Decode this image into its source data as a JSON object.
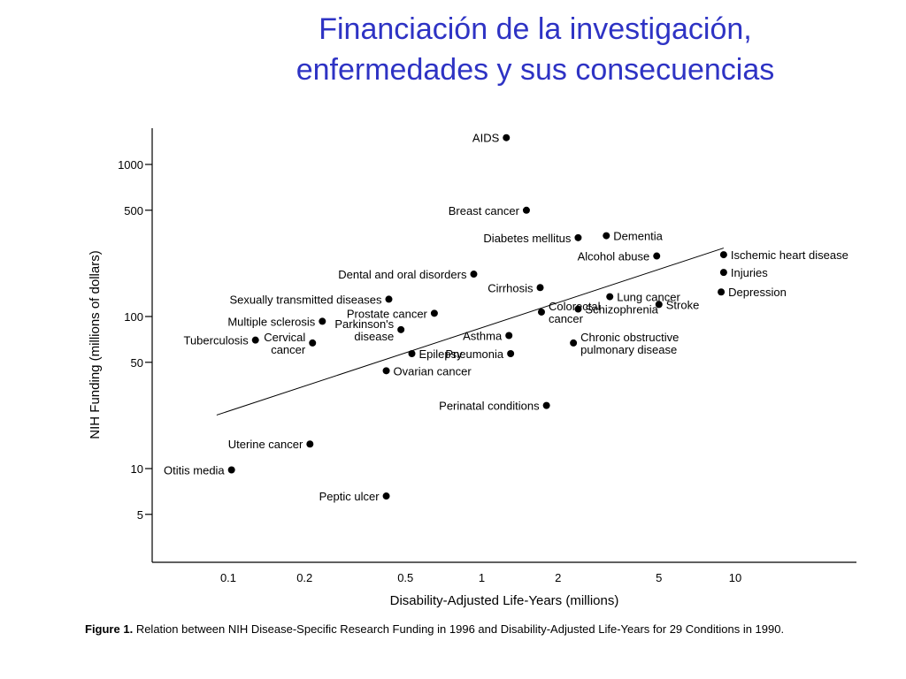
{
  "slide": {
    "title_line1": "Financiación de la investigación,",
    "title_line2": "enfermedades y sus consecuencias"
  },
  "figure": {
    "caption_label": "Figure 1.",
    "caption_text": "Relation between NIH Disease-Specific Research Funding in 1996 and Disability-Adjusted Life-Years for 29 Conditions in 1990."
  },
  "chart_data": {
    "type": "scatter",
    "xlabel": "Disability-Adjusted Life-Years (millions)",
    "ylabel": "NIH Funding (millions of dollars)",
    "x_scale": "log",
    "y_scale": "log",
    "xlim": [
      0.06,
      20
    ],
    "ylim": [
      3,
      1800
    ],
    "x_ticks": [
      {
        "value": 0.1,
        "label": "0.1"
      },
      {
        "value": 0.2,
        "label": "0.2"
      },
      {
        "value": 0.5,
        "label": "0.5"
      },
      {
        "value": 1,
        "label": "1"
      },
      {
        "value": 2,
        "label": "2"
      },
      {
        "value": 5,
        "label": "5"
      },
      {
        "value": 10,
        "label": "10"
      }
    ],
    "y_ticks": [
      {
        "value": 5,
        "label": "5"
      },
      {
        "value": 10,
        "label": "10"
      },
      {
        "value": 50,
        "label": "50"
      },
      {
        "value": 100,
        "label": "100"
      },
      {
        "value": 500,
        "label": "500"
      },
      {
        "value": 1000,
        "label": "1000"
      }
    ],
    "grid": false,
    "trend_line": [
      {
        "x": 0.09,
        "y": 22.5
      },
      {
        "x": 9.0,
        "y": 282
      }
    ],
    "points": [
      {
        "lines": [
          "AIDS"
        ],
        "x": 1.25,
        "y": 1500,
        "anchor": "end"
      },
      {
        "lines": [
          "Breast cancer"
        ],
        "x": 1.5,
        "y": 500,
        "anchor": "end"
      },
      {
        "lines": [
          "Diabetes mellitus"
        ],
        "x": 2.4,
        "y": 330,
        "anchor": "end"
      },
      {
        "lines": [
          "Dementia"
        ],
        "x": 3.1,
        "y": 340,
        "anchor": "start"
      },
      {
        "lines": [
          "Alcohol abuse"
        ],
        "x": 4.9,
        "y": 250,
        "anchor": "end"
      },
      {
        "lines": [
          "Ischemic heart disease"
        ],
        "x": 9.0,
        "y": 255,
        "anchor": "start"
      },
      {
        "lines": [
          "Injuries"
        ],
        "x": 9.0,
        "y": 195,
        "anchor": "start"
      },
      {
        "lines": [
          "Dental and oral disorders"
        ],
        "x": 0.93,
        "y": 190,
        "anchor": "end"
      },
      {
        "lines": [
          "Cirrhosis"
        ],
        "x": 1.7,
        "y": 155,
        "anchor": "end"
      },
      {
        "lines": [
          "Lung cancer"
        ],
        "x": 3.2,
        "y": 135,
        "anchor": "start"
      },
      {
        "lines": [
          "Depression"
        ],
        "x": 8.8,
        "y": 145,
        "anchor": "start"
      },
      {
        "lines": [
          "Sexually transmitted diseases"
        ],
        "x": 0.43,
        "y": 130,
        "anchor": "end"
      },
      {
        "lines": [
          "Stroke"
        ],
        "x": 5.0,
        "y": 120,
        "anchor": "start"
      },
      {
        "lines": [
          "Schizophrenia"
        ],
        "x": 2.4,
        "y": 112,
        "anchor": "start"
      },
      {
        "lines": [
          "Prostate cancer"
        ],
        "x": 0.65,
        "y": 105,
        "anchor": "end"
      },
      {
        "lines": [
          "Colorectal",
          "cancer"
        ],
        "x": 1.72,
        "y": 107,
        "anchor": "start"
      },
      {
        "lines": [
          "Multiple sclerosis"
        ],
        "x": 0.235,
        "y": 93,
        "anchor": "end"
      },
      {
        "lines": [
          "Parkinson's",
          "disease"
        ],
        "x": 0.48,
        "y": 82,
        "anchor": "end"
      },
      {
        "lines": [
          "Asthma"
        ],
        "x": 1.28,
        "y": 75,
        "anchor": "end"
      },
      {
        "lines": [
          "Tuberculosis"
        ],
        "x": 0.128,
        "y": 70,
        "anchor": "end"
      },
      {
        "lines": [
          "Cervical",
          "cancer"
        ],
        "x": 0.215,
        "y": 67,
        "anchor": "end"
      },
      {
        "lines": [
          "Chronic obstructive",
          "pulmonary disease"
        ],
        "x": 2.3,
        "y": 67,
        "anchor": "start"
      },
      {
        "lines": [
          "Epilepsy"
        ],
        "x": 0.53,
        "y": 57,
        "anchor": "start"
      },
      {
        "lines": [
          "Pneumonia"
        ],
        "x": 1.3,
        "y": 57,
        "anchor": "end"
      },
      {
        "lines": [
          "Ovarian cancer"
        ],
        "x": 0.42,
        "y": 44,
        "anchor": "start"
      },
      {
        "lines": [
          "Perinatal conditions"
        ],
        "x": 1.8,
        "y": 26,
        "anchor": "end"
      },
      {
        "lines": [
          "Uterine cancer"
        ],
        "x": 0.21,
        "y": 14.5,
        "anchor": "end"
      },
      {
        "lines": [
          "Otitis media"
        ],
        "x": 0.103,
        "y": 9.8,
        "anchor": "end"
      },
      {
        "lines": [
          "Peptic ulcer"
        ],
        "x": 0.42,
        "y": 6.6,
        "anchor": "end"
      }
    ]
  }
}
